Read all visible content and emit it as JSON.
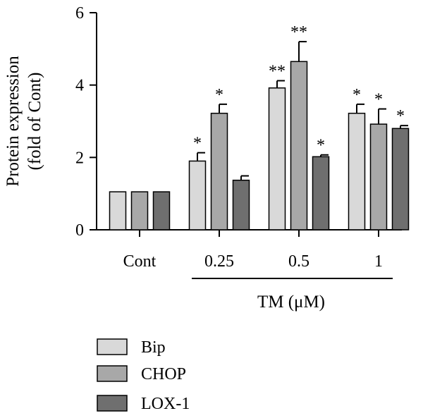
{
  "chart_data": {
    "type": "bar",
    "categories": [
      "Cont",
      "0.25",
      "0.5",
      "1"
    ],
    "group_label": "TM (μM)",
    "ylabel_line1": "Protein expression",
    "ylabel_line2": "(fold of Cont)",
    "ylim": [
      0,
      6
    ],
    "yticks": [
      "0",
      "2",
      "4",
      "6"
    ],
    "series": [
      {
        "name": "Bip",
        "color": "#d9d9d9",
        "values": [
          1.05,
          1.9,
          3.92,
          3.22
        ],
        "errors": [
          0,
          0.23,
          0.2,
          0.25
        ],
        "sig": [
          "",
          "*",
          "**",
          "*"
        ]
      },
      {
        "name": "CHOP",
        "color": "#a8a8a8",
        "values": [
          1.05,
          3.22,
          4.65,
          2.92
        ],
        "errors": [
          0,
          0.25,
          0.55,
          0.42
        ],
        "sig": [
          "",
          "*",
          "**",
          "*"
        ]
      },
      {
        "name": "LOX-1",
        "color": "#6f6f6f",
        "values": [
          1.05,
          1.37,
          2.02,
          2.8
        ],
        "errors": [
          0,
          0.12,
          0.05,
          0.08
        ],
        "sig": [
          "",
          "",
          "*",
          "*"
        ]
      }
    ],
    "grid": false,
    "legend_position": "bottom-left"
  }
}
